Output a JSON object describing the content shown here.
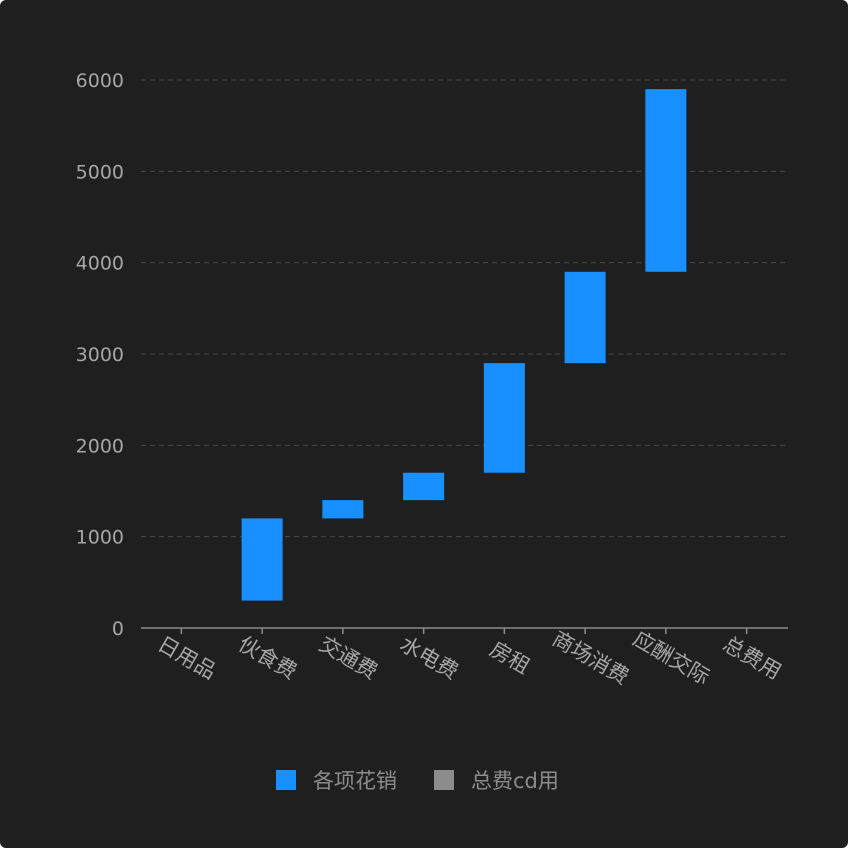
{
  "colors": {
    "background": "#1f1f1f",
    "bar": "#1890ff",
    "total": "#8c8c8c",
    "grid": "#4a4a4a",
    "axis": "#8c8c8c",
    "text": "#a6a6a6"
  },
  "chart_data": {
    "type": "bar",
    "subtype": "waterfall",
    "categories": [
      "日用品",
      "伙食费",
      "交通费",
      "水电费",
      "房租",
      "商场消费",
      "应酬交际",
      "总费用"
    ],
    "bars": [
      {
        "start": 0,
        "end": 0
      },
      {
        "start": 300,
        "end": 1200
      },
      {
        "start": 1200,
        "end": 1400
      },
      {
        "start": 1400,
        "end": 1700
      },
      {
        "start": 1700,
        "end": 2900
      },
      {
        "start": 2900,
        "end": 3900
      },
      {
        "start": 3900,
        "end": 5900
      },
      {
        "start": 0,
        "end": 0
      }
    ],
    "yticks": [
      "0",
      "1000",
      "2000",
      "3000",
      "4000",
      "5000",
      "6000"
    ],
    "ylim": [
      0,
      6000
    ],
    "grid": true,
    "legend": {
      "position": "bottom",
      "items": [
        {
          "label": "各项花销",
          "color": "#1890ff"
        },
        {
          "label": "总费cd用",
          "color": "#8c8c8c"
        }
      ]
    }
  }
}
